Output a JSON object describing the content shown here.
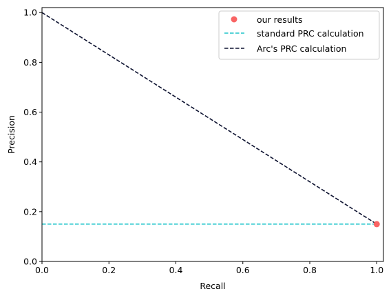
{
  "chart_data": {
    "type": "line",
    "title": "",
    "xlabel": "Recall",
    "ylabel": "Precision",
    "xlim": [
      0.0,
      1.02
    ],
    "ylim": [
      0.0,
      1.02
    ],
    "xticks": [
      "0.0",
      "0.2",
      "0.4",
      "0.6",
      "0.8",
      "1.0"
    ],
    "yticks": [
      "0.0",
      "0.2",
      "0.4",
      "0.6",
      "0.8",
      "1.0"
    ],
    "grid": false,
    "legend_position": "top-right",
    "series": [
      {
        "name": "our results",
        "kind": "points",
        "color": "#f96464",
        "x": [
          1.0
        ],
        "y": [
          0.15
        ]
      },
      {
        "name": "standard PRC calculation",
        "kind": "dashed-line",
        "color": "#1fc4c9",
        "x": [
          0.0,
          1.0
        ],
        "y": [
          0.15,
          0.15
        ]
      },
      {
        "name": "Arc's PRC calculation",
        "kind": "dashed-line",
        "color": "#0d1230",
        "x": [
          0.0,
          1.0
        ],
        "y": [
          1.0,
          0.15
        ]
      }
    ]
  }
}
